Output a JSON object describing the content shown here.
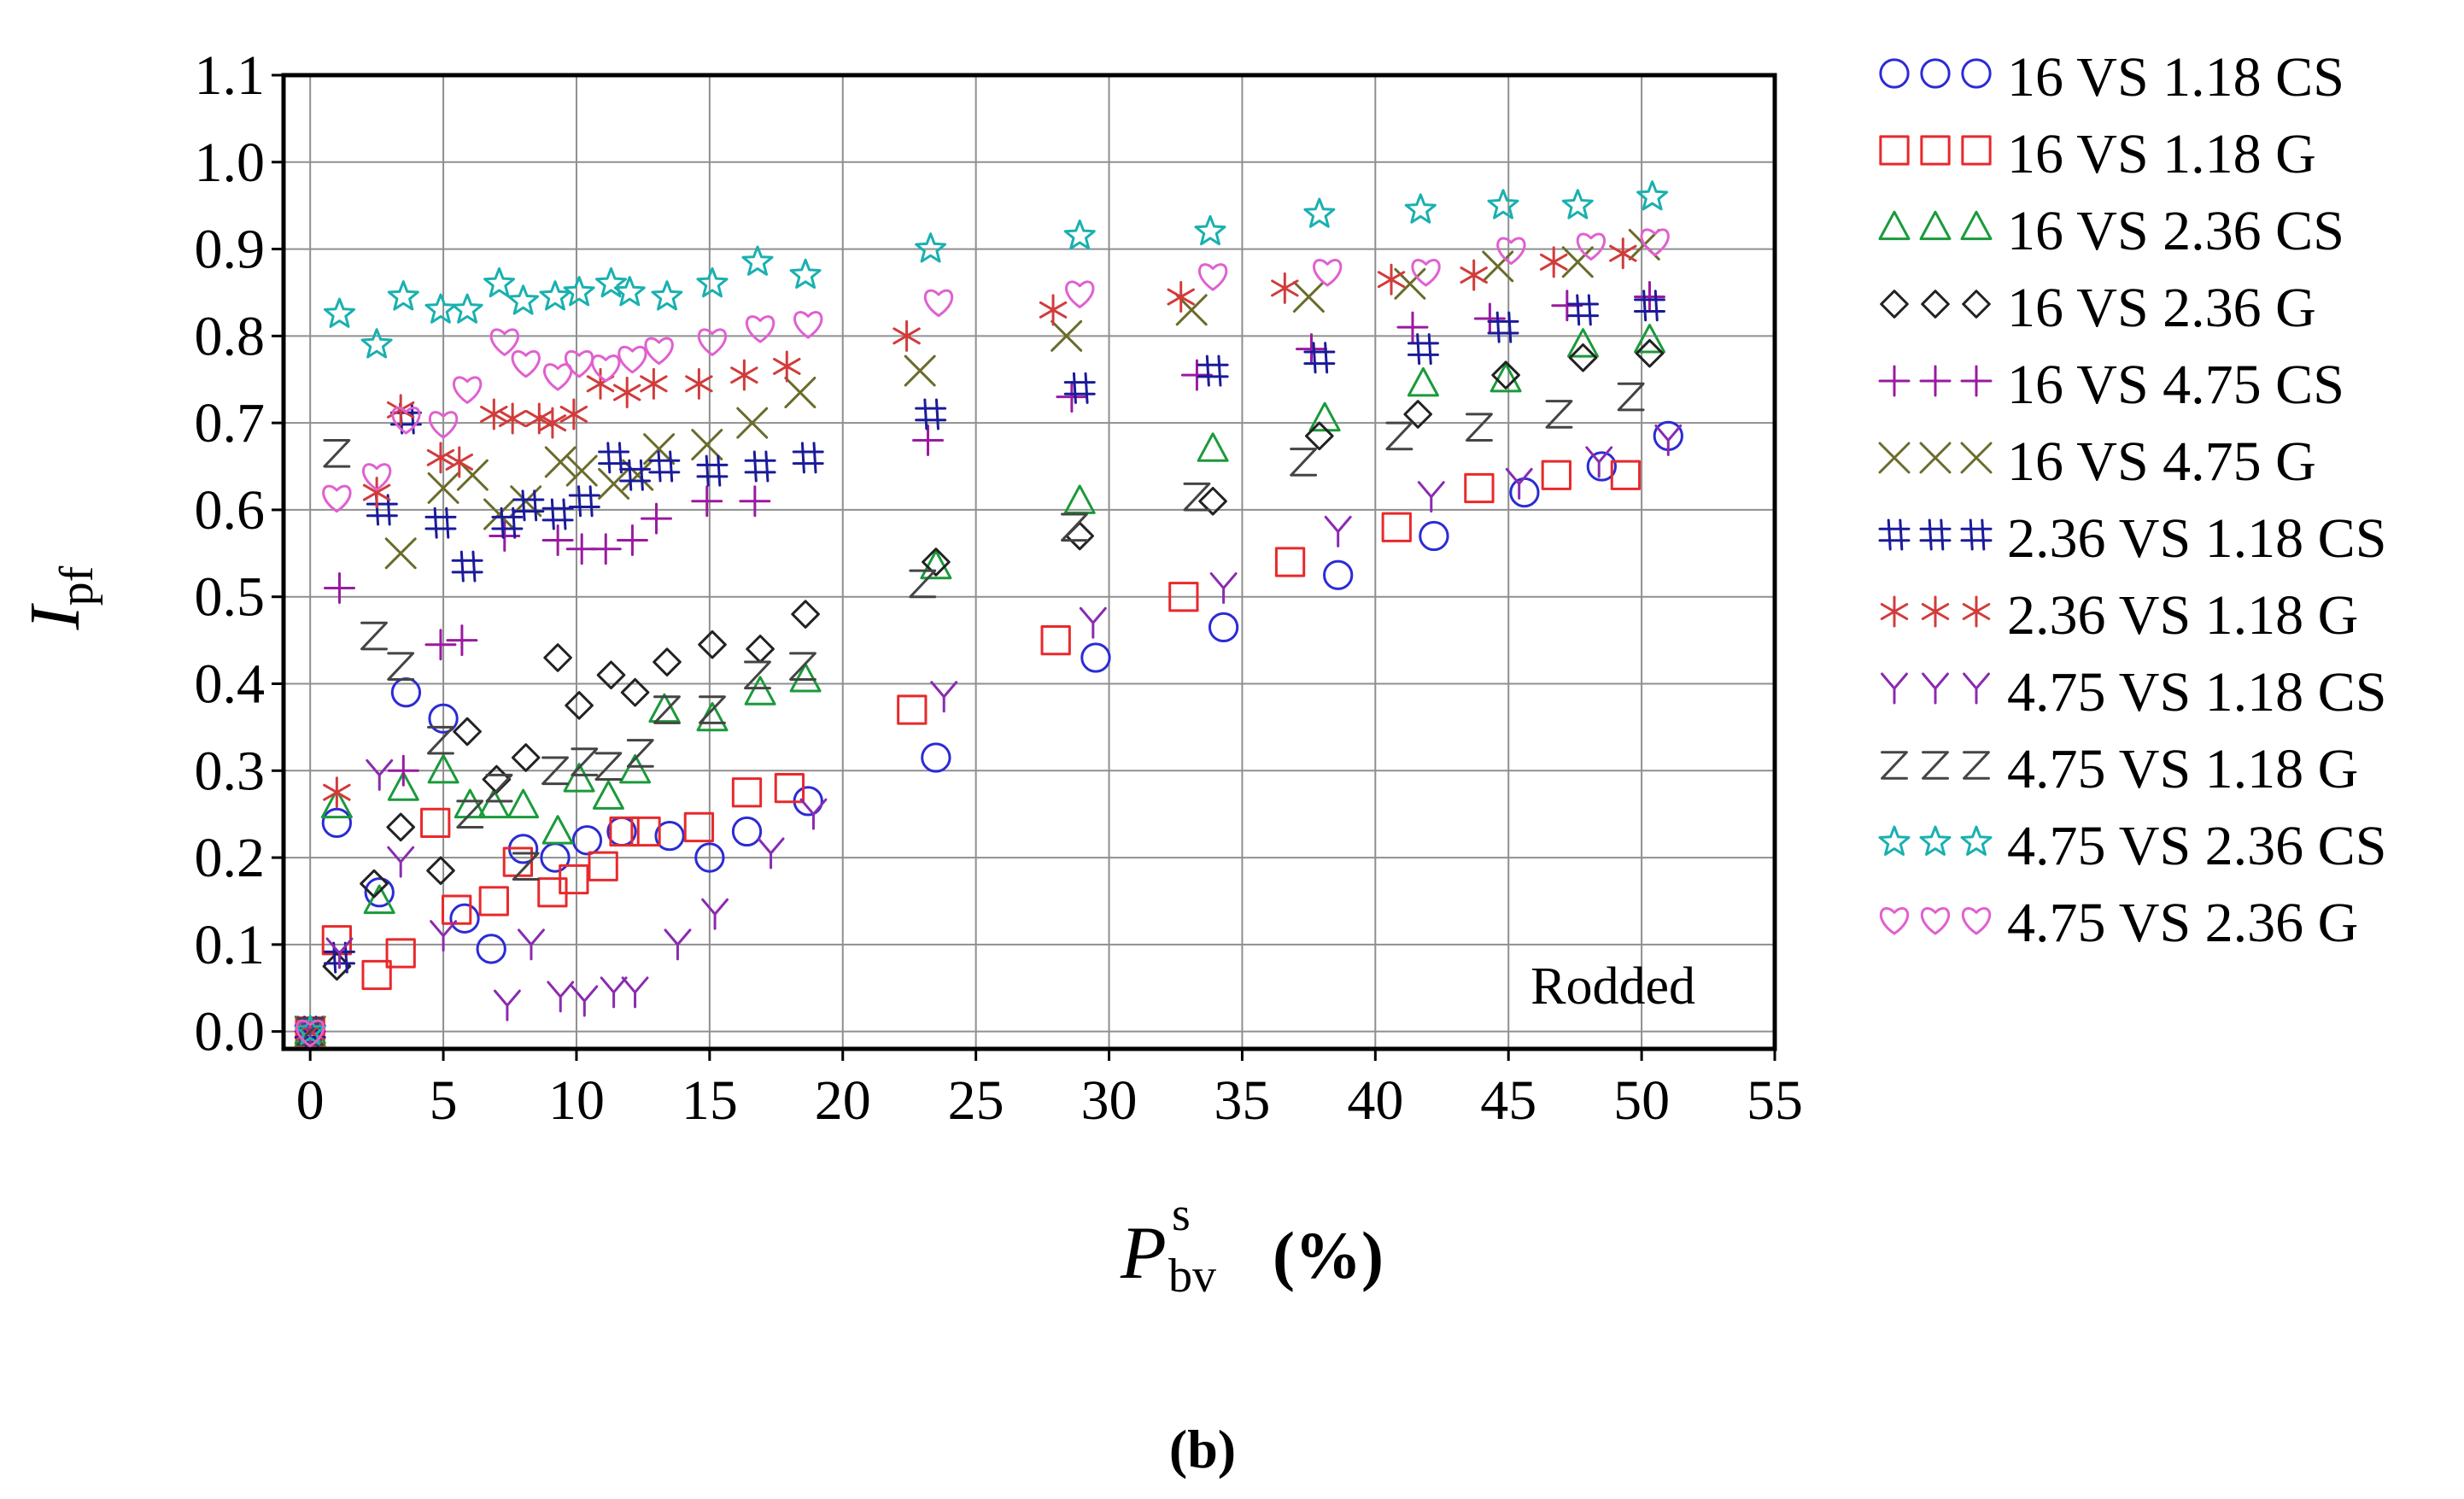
{
  "caption": "(b)",
  "chart_data": {
    "type": "scatter",
    "x_label": {
      "main": "P",
      "superscript": "s",
      "subscript": "bv",
      "unit": "(%)"
    },
    "y_label": {
      "main": "I",
      "subscript": "pf"
    },
    "annotation": "Rodded",
    "xlim": [
      -1,
      55
    ],
    "ylim": [
      -0.02,
      1.1
    ],
    "x_ticks": [
      0,
      5,
      10,
      15,
      20,
      25,
      30,
      35,
      40,
      45,
      50,
      55
    ],
    "x_tick_labels": [
      "0",
      "5",
      "10",
      "15",
      "20",
      "25",
      "30",
      "35",
      "40",
      "45",
      "50",
      "55"
    ],
    "y_ticks": [
      0.0,
      0.1,
      0.2,
      0.3,
      0.4,
      0.5,
      0.6,
      0.7,
      0.8,
      0.9,
      1.0,
      1.1
    ],
    "y_tick_labels": [
      "0.0",
      "0.1",
      "0.2",
      "0.3",
      "0.4",
      "0.5",
      "0.6",
      "0.7",
      "0.8",
      "0.9",
      "1.0",
      "1.1"
    ],
    "grid": true,
    "legend_position": "right",
    "series": [
      {
        "name": "16 VS 1.18 CS",
        "marker": "circle",
        "color": "#2b2bd6",
        "points": [
          [
            0,
            0
          ],
          [
            1,
            0.24
          ],
          [
            2.6,
            0.16
          ],
          [
            3.6,
            0.39
          ],
          [
            5,
            0.36
          ],
          [
            5.8,
            0.13
          ],
          [
            6.8,
            0.095
          ],
          [
            8,
            0.21
          ],
          [
            9.2,
            0.2
          ],
          [
            10.4,
            0.22
          ],
          [
            11.7,
            0.23
          ],
          [
            13.5,
            0.225
          ],
          [
            15,
            0.2
          ],
          [
            16.4,
            0.23
          ],
          [
            18.7,
            0.265
          ],
          [
            23.5,
            0.315
          ],
          [
            29.5,
            0.43
          ],
          [
            34.3,
            0.465
          ],
          [
            38.6,
            0.525
          ],
          [
            42.2,
            0.57
          ],
          [
            45.6,
            0.62
          ],
          [
            48.5,
            0.65
          ],
          [
            51,
            0.685
          ]
        ]
      },
      {
        "name": "16 VS 1.18 G",
        "marker": "square",
        "color": "#e8292b",
        "points": [
          [
            0,
            0
          ],
          [
            1,
            0.105
          ],
          [
            2.5,
            0.065
          ],
          [
            3.4,
            0.09
          ],
          [
            4.7,
            0.24
          ],
          [
            5.5,
            0.14
          ],
          [
            6.9,
            0.15
          ],
          [
            7.8,
            0.195
          ],
          [
            9.1,
            0.16
          ],
          [
            9.9,
            0.175
          ],
          [
            11,
            0.19
          ],
          [
            11.8,
            0.23
          ],
          [
            12.6,
            0.23
          ],
          [
            14.6,
            0.235
          ],
          [
            16.4,
            0.275
          ],
          [
            18,
            0.28
          ],
          [
            22.6,
            0.37
          ],
          [
            28,
            0.45
          ],
          [
            32.8,
            0.5
          ],
          [
            36.8,
            0.54
          ],
          [
            40.8,
            0.58
          ],
          [
            43.9,
            0.625
          ],
          [
            46.8,
            0.64
          ],
          [
            49.4,
            0.64
          ]
        ]
      },
      {
        "name": "16 VS 2.36 CS",
        "marker": "triangle",
        "color": "#1a9a3a",
        "points": [
          [
            0,
            0
          ],
          [
            1,
            0.26
          ],
          [
            2.6,
            0.15
          ],
          [
            3.5,
            0.28
          ],
          [
            5,
            0.3
          ],
          [
            6,
            0.26
          ],
          [
            6.9,
            0.26
          ],
          [
            8,
            0.26
          ],
          [
            9.3,
            0.23
          ],
          [
            10.1,
            0.29
          ],
          [
            11.2,
            0.27
          ],
          [
            12.2,
            0.3
          ],
          [
            13.3,
            0.37
          ],
          [
            15.1,
            0.36
          ],
          [
            16.9,
            0.39
          ],
          [
            18.6,
            0.405
          ],
          [
            23.5,
            0.535
          ],
          [
            28.9,
            0.61
          ],
          [
            33.9,
            0.67
          ],
          [
            38.1,
            0.705
          ],
          [
            41.8,
            0.745
          ],
          [
            44.9,
            0.75
          ],
          [
            47.8,
            0.79
          ],
          [
            50.3,
            0.795
          ]
        ]
      },
      {
        "name": "16 VS 2.36 G",
        "marker": "diamond",
        "color": "#222222",
        "points": [
          [
            0,
            0
          ],
          [
            1,
            0.075
          ],
          [
            2.4,
            0.17
          ],
          [
            3.4,
            0.235
          ],
          [
            4.9,
            0.185
          ],
          [
            5.9,
            0.345
          ],
          [
            7,
            0.29
          ],
          [
            8.1,
            0.315
          ],
          [
            9.3,
            0.43
          ],
          [
            10.1,
            0.375
          ],
          [
            11.3,
            0.41
          ],
          [
            12.2,
            0.39
          ],
          [
            13.4,
            0.425
          ],
          [
            15.1,
            0.445
          ],
          [
            16.9,
            0.44
          ],
          [
            18.6,
            0.48
          ],
          [
            23.5,
            0.54
          ],
          [
            28.9,
            0.57
          ],
          [
            33.9,
            0.61
          ],
          [
            37.9,
            0.685
          ],
          [
            41.6,
            0.71
          ],
          [
            44.9,
            0.755
          ],
          [
            47.8,
            0.775
          ],
          [
            50.3,
            0.78
          ]
        ]
      },
      {
        "name": "16 VS 4.75 CS",
        "marker": "plus",
        "color": "#9a1aa0",
        "points": [
          [
            0,
            0
          ],
          [
            1.1,
            0.51
          ],
          [
            3.5,
            0.3
          ],
          [
            4.9,
            0.445
          ],
          [
            5.7,
            0.45
          ],
          [
            7.3,
            0.57
          ],
          [
            9.3,
            0.565
          ],
          [
            10.2,
            0.555
          ],
          [
            11.1,
            0.555
          ],
          [
            12.1,
            0.565
          ],
          [
            13,
            0.59
          ],
          [
            14.9,
            0.61
          ],
          [
            16.7,
            0.61
          ],
          [
            23.2,
            0.68
          ],
          [
            28.6,
            0.73
          ],
          [
            33.3,
            0.755
          ],
          [
            37.6,
            0.785
          ],
          [
            41.4,
            0.81
          ],
          [
            44.3,
            0.82
          ],
          [
            47.2,
            0.835
          ],
          [
            50.3,
            0.845
          ]
        ]
      },
      {
        "name": "16 VS 4.75 G",
        "marker": "x",
        "color": "#6b6b2b",
        "points": [
          [
            0,
            0
          ],
          [
            3.4,
            0.55
          ],
          [
            5,
            0.625
          ],
          [
            6.1,
            0.64
          ],
          [
            7.1,
            0.595
          ],
          [
            8.1,
            0.61
          ],
          [
            9.4,
            0.655
          ],
          [
            10.2,
            0.645
          ],
          [
            11.4,
            0.63
          ],
          [
            12.3,
            0.64
          ],
          [
            13.1,
            0.67
          ],
          [
            14.9,
            0.675
          ],
          [
            16.6,
            0.7
          ],
          [
            18.4,
            0.735
          ],
          [
            22.9,
            0.76
          ],
          [
            28.4,
            0.8
          ],
          [
            33.1,
            0.83
          ],
          [
            37.5,
            0.845
          ],
          [
            41.3,
            0.86
          ],
          [
            44.6,
            0.88
          ],
          [
            47.6,
            0.885
          ],
          [
            50.1,
            0.905
          ]
        ]
      },
      {
        "name": "2.36 VS 1.18 CS",
        "marker": "hash",
        "color": "#1a1a9a",
        "points": [
          [
            0,
            0
          ],
          [
            1.1,
            0.085
          ],
          [
            2.7,
            0.6
          ],
          [
            3.6,
            0.705
          ],
          [
            4.9,
            0.585
          ],
          [
            5.9,
            0.535
          ],
          [
            7.4,
            0.585
          ],
          [
            8.2,
            0.605
          ],
          [
            9.3,
            0.595
          ],
          [
            10.3,
            0.61
          ],
          [
            11.4,
            0.66
          ],
          [
            12.2,
            0.64
          ],
          [
            13.3,
            0.65
          ],
          [
            15.1,
            0.645
          ],
          [
            16.9,
            0.65
          ],
          [
            18.7,
            0.66
          ],
          [
            23.3,
            0.71
          ],
          [
            28.9,
            0.74
          ],
          [
            33.9,
            0.76
          ],
          [
            37.9,
            0.775
          ],
          [
            41.8,
            0.785
          ],
          [
            44.8,
            0.81
          ],
          [
            47.8,
            0.83
          ],
          [
            50.3,
            0.835
          ]
        ]
      },
      {
        "name": "2.36 VS 1.18 G",
        "marker": "asterisk",
        "color": "#d23b3b",
        "points": [
          [
            0,
            0
          ],
          [
            1,
            0.275
          ],
          [
            2.5,
            0.62
          ],
          [
            3.4,
            0.715
          ],
          [
            4.9,
            0.66
          ],
          [
            5.6,
            0.655
          ],
          [
            6.9,
            0.71
          ],
          [
            7.6,
            0.705
          ],
          [
            8.6,
            0.705
          ],
          [
            9.1,
            0.7
          ],
          [
            9.9,
            0.71
          ],
          [
            10.9,
            0.745
          ],
          [
            11.9,
            0.735
          ],
          [
            12.9,
            0.745
          ],
          [
            14.6,
            0.745
          ],
          [
            16.3,
            0.755
          ],
          [
            17.9,
            0.765
          ],
          [
            22.4,
            0.8
          ],
          [
            27.9,
            0.83
          ],
          [
            32.7,
            0.845
          ],
          [
            36.6,
            0.855
          ],
          [
            40.6,
            0.865
          ],
          [
            43.7,
            0.87
          ],
          [
            46.7,
            0.885
          ],
          [
            49.3,
            0.895
          ]
        ]
      },
      {
        "name": "4.75 VS 1.18 CS",
        "marker": "y",
        "color": "#8a2bb0",
        "points": [
          [
            0,
            0
          ],
          [
            1.1,
            0.09
          ],
          [
            2.6,
            0.295
          ],
          [
            3.4,
            0.195
          ],
          [
            5,
            0.11
          ],
          [
            7.4,
            0.03
          ],
          [
            8.3,
            0.1
          ],
          [
            9.4,
            0.04
          ],
          [
            10.3,
            0.035
          ],
          [
            11.4,
            0.045
          ],
          [
            12.2,
            0.045
          ],
          [
            13.8,
            0.1
          ],
          [
            15.2,
            0.135
          ],
          [
            17.3,
            0.205
          ],
          [
            18.9,
            0.25
          ],
          [
            23.8,
            0.385
          ],
          [
            29.4,
            0.47
          ],
          [
            34.3,
            0.51
          ],
          [
            38.6,
            0.575
          ],
          [
            42.1,
            0.615
          ],
          [
            45.4,
            0.63
          ],
          [
            48.4,
            0.655
          ],
          [
            51,
            0.68
          ]
        ]
      },
      {
        "name": "4.75 VS 1.18 G",
        "marker": "z",
        "color": "#444444",
        "points": [
          [
            0,
            0
          ],
          [
            1,
            0.665
          ],
          [
            2.4,
            0.455
          ],
          [
            3.4,
            0.42
          ],
          [
            4.9,
            0.335
          ],
          [
            6,
            0.25
          ],
          [
            7.1,
            0.28
          ],
          [
            8.1,
            0.19
          ],
          [
            9.2,
            0.3
          ],
          [
            10.3,
            0.31
          ],
          [
            11.2,
            0.305
          ],
          [
            12.4,
            0.32
          ],
          [
            13.4,
            0.37
          ],
          [
            15.1,
            0.37
          ],
          [
            16.8,
            0.41
          ],
          [
            18.5,
            0.42
          ],
          [
            23,
            0.515
          ],
          [
            28.7,
            0.58
          ],
          [
            33.3,
            0.615
          ],
          [
            37.3,
            0.655
          ],
          [
            40.9,
            0.685
          ],
          [
            43.9,
            0.695
          ],
          [
            46.9,
            0.71
          ],
          [
            49.6,
            0.73
          ]
        ]
      },
      {
        "name": "4.75 VS 2.36 CS",
        "marker": "star",
        "color": "#1ab0b0",
        "points": [
          [
            0,
            0
          ],
          [
            1.1,
            0.825
          ],
          [
            2.5,
            0.79
          ],
          [
            3.5,
            0.845
          ],
          [
            4.9,
            0.83
          ],
          [
            5.9,
            0.83
          ],
          [
            7.1,
            0.86
          ],
          [
            8,
            0.84
          ],
          [
            9.2,
            0.845
          ],
          [
            10.1,
            0.85
          ],
          [
            11.3,
            0.86
          ],
          [
            12,
            0.85
          ],
          [
            13.4,
            0.845
          ],
          [
            15.1,
            0.86
          ],
          [
            16.8,
            0.885
          ],
          [
            18.6,
            0.87
          ],
          [
            23.3,
            0.9
          ],
          [
            28.9,
            0.915
          ],
          [
            33.8,
            0.92
          ],
          [
            37.9,
            0.94
          ],
          [
            41.7,
            0.945
          ],
          [
            44.8,
            0.95
          ],
          [
            47.6,
            0.95
          ],
          [
            50.4,
            0.96
          ]
        ]
      },
      {
        "name": "4.75 VS 2.36 G",
        "marker": "heart",
        "color": "#e060d0",
        "points": [
          [
            0,
            0
          ],
          [
            1,
            0.615
          ],
          [
            2.5,
            0.64
          ],
          [
            3.6,
            0.705
          ],
          [
            5,
            0.7
          ],
          [
            5.9,
            0.74
          ],
          [
            7.3,
            0.795
          ],
          [
            8.1,
            0.77
          ],
          [
            9.3,
            0.755
          ],
          [
            10.1,
            0.77
          ],
          [
            11.1,
            0.765
          ],
          [
            12.1,
            0.775
          ],
          [
            13.1,
            0.785
          ],
          [
            15.1,
            0.795
          ],
          [
            16.9,
            0.81
          ],
          [
            18.7,
            0.815
          ],
          [
            23.6,
            0.84
          ],
          [
            28.9,
            0.85
          ],
          [
            33.9,
            0.87
          ],
          [
            38.2,
            0.875
          ],
          [
            41.9,
            0.875
          ],
          [
            45.1,
            0.9
          ],
          [
            48.1,
            0.905
          ],
          [
            50.5,
            0.91
          ]
        ]
      }
    ]
  }
}
